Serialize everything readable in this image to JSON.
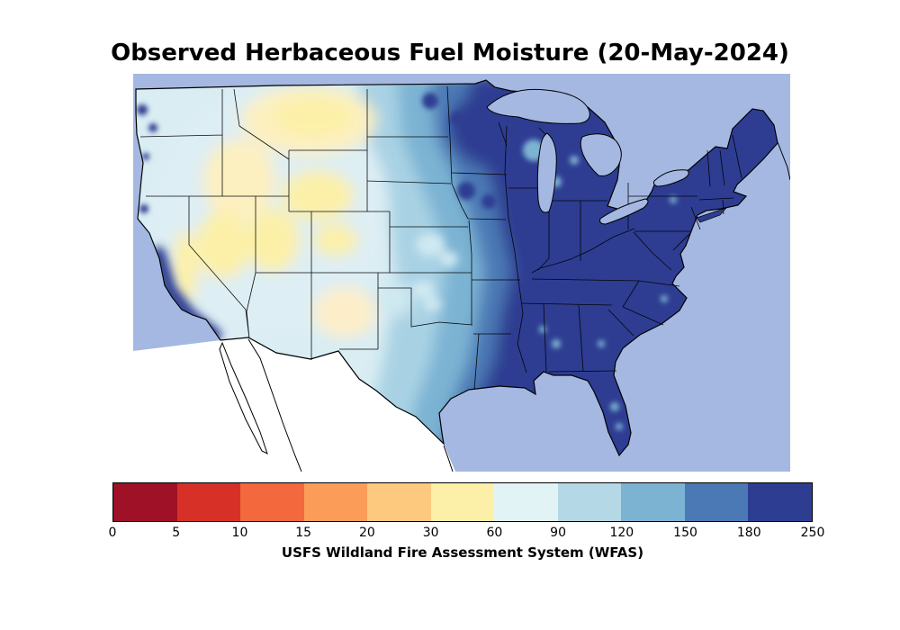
{
  "figure": {
    "title": "Observed Herbaceous Fuel Moisture (20-May-2024)",
    "caption": "USFS Wildland Fire Assessment System (WFAS)"
  },
  "colorbar": {
    "tick_labels": [
      "0",
      "5",
      "10",
      "15",
      "20",
      "30",
      "60",
      "90",
      "120",
      "150",
      "180",
      "250"
    ],
    "segment_colors": [
      "#9f1126",
      "#d73027",
      "#f4683e",
      "#fb9d59",
      "#fdc97e",
      "#fcf0a8",
      "#e2f3f6",
      "#b5d8e6",
      "#7cb3d3",
      "#4b79b5",
      "#2d3e92"
    ],
    "value_min": 0,
    "value_max": 250
  },
  "map": {
    "palette": {
      "outside_us_fill": "#a4b8e1",
      "mexico_mask_fill": "#ffffff",
      "moisture_low_yellow": "#fcf0a8",
      "moisture_mid_blue": "#7cb3d3",
      "moisture_high_navy": "#2d3e92",
      "boundary_line": "#000000"
    }
  }
}
